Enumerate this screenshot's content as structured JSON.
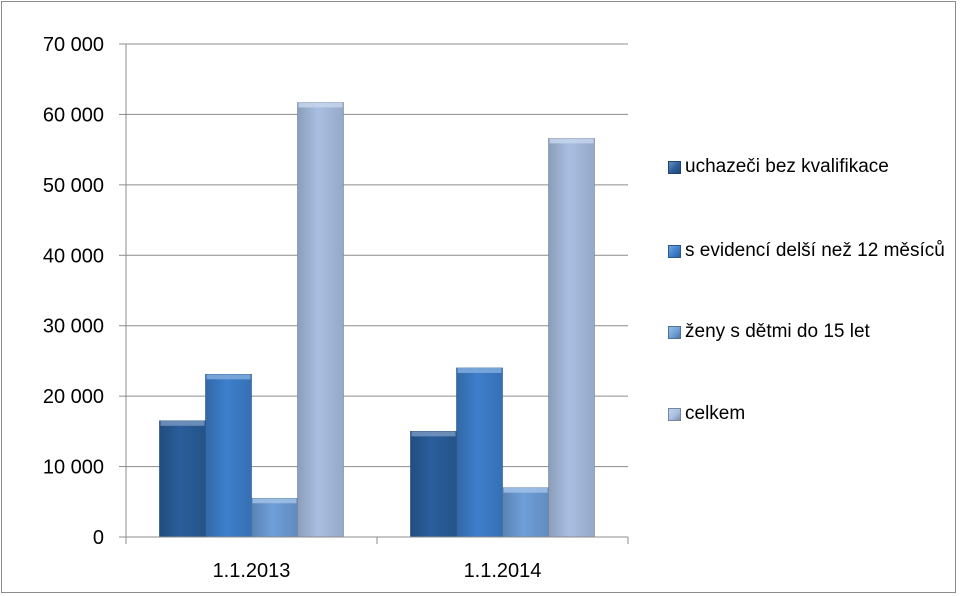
{
  "chart_data": {
    "type": "bar",
    "title": "",
    "xlabel": "",
    "ylabel": "",
    "categories": [
      "1.1.2013",
      "1.1.2014"
    ],
    "ylim": [
      0,
      70000
    ],
    "yticks": [
      0,
      10000,
      20000,
      30000,
      40000,
      50000,
      60000,
      70000
    ],
    "ytick_labels": [
      "0",
      "10 000",
      "20 000",
      "30 000",
      "40 000",
      "50 000",
      "60 000",
      "70 000"
    ],
    "grid": true,
    "legend_position": "right",
    "series": [
      {
        "name": "uchazeči bez kvalifikace",
        "values": [
          16500,
          15000
        ],
        "color": "#2a5e9b"
      },
      {
        "name": "s evidencí delší než 12 měsíců",
        "values": [
          23100,
          24000
        ],
        "color": "#3d7fcc"
      },
      {
        "name": "ženy s dětmi do 15 let",
        "values": [
          5500,
          7000
        ],
        "color": "#6e9fd9"
      },
      {
        "name": "celkem",
        "values": [
          61700,
          56600
        ],
        "color": "#a9bfe2"
      }
    ]
  }
}
